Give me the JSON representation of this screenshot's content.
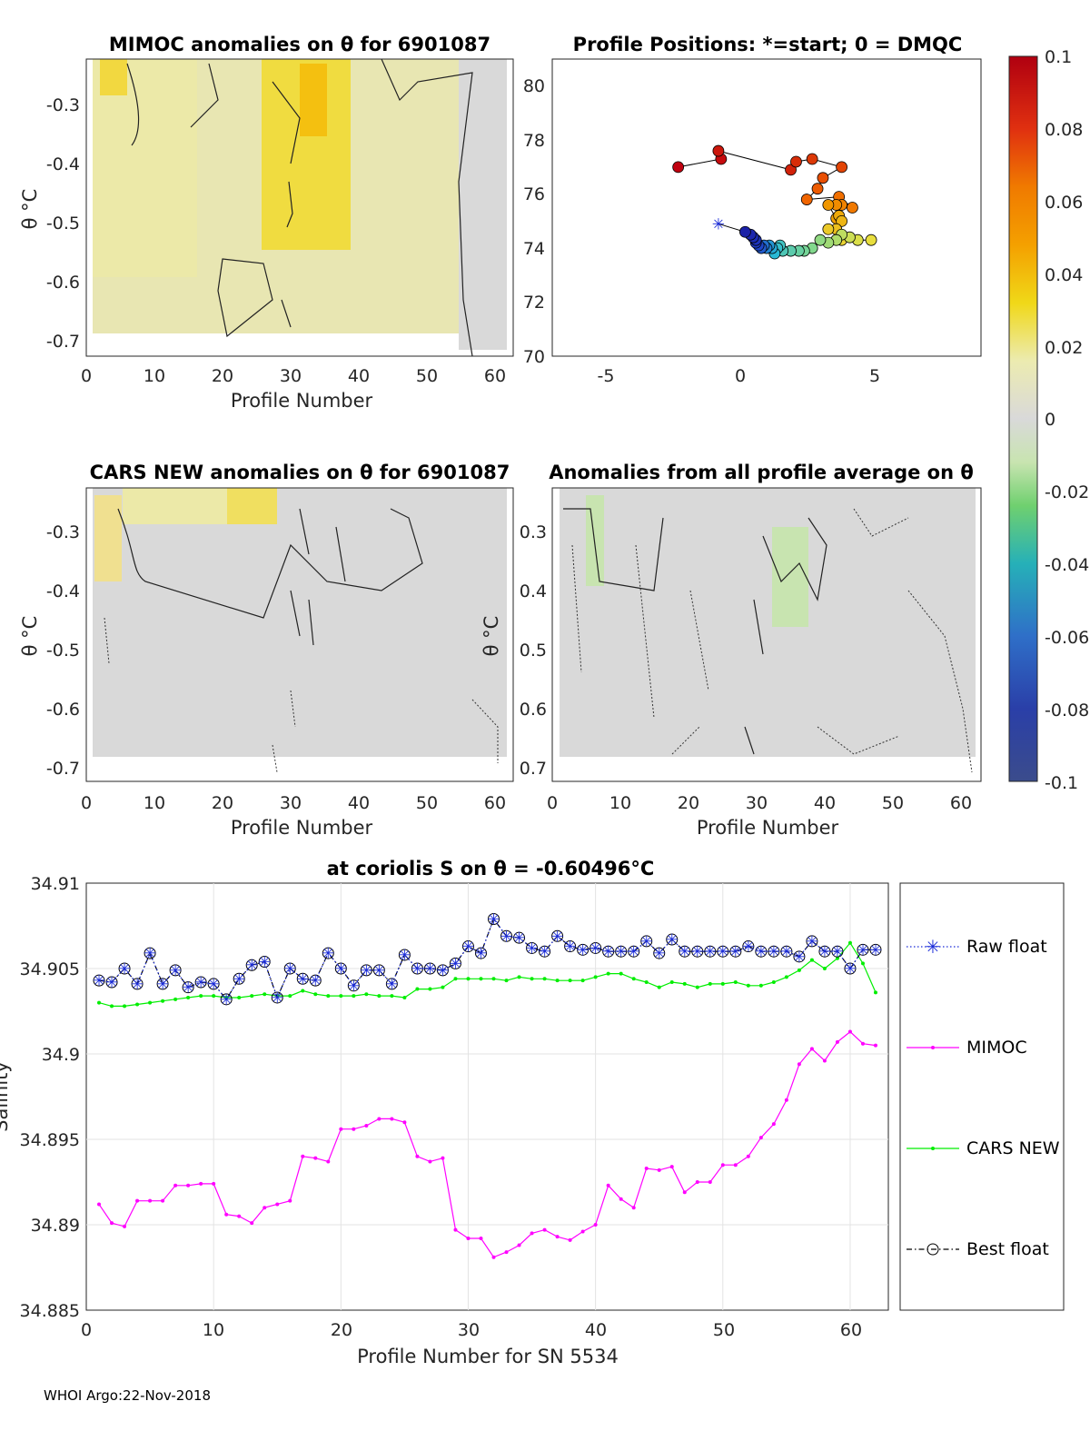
{
  "footer": "WHOI Argo:22-Nov-2018",
  "panels": {
    "mimoc": {
      "title": "MIMOC anomalies on θ  for 6901087",
      "xlabel": "Profile Number",
      "ylabel": "θ °C",
      "xticks": [
        "0",
        "10",
        "20",
        "30",
        "40",
        "50",
        "60"
      ],
      "yticks": [
        "-0.3",
        "-0.4",
        "-0.5",
        "-0.6",
        "-0.7"
      ]
    },
    "positions": {
      "title": "Profile Positions: *=start; 0 = DMQC",
      "xticks": [
        "-5",
        "0",
        "5"
      ],
      "yticks": [
        "80",
        "78",
        "76",
        "74",
        "72",
        "70"
      ]
    },
    "cars": {
      "title": "CARS NEW anomalies on θ for 6901087",
      "xlabel": "Profile Number",
      "ylabel": "θ °C",
      "xticks": [
        "0",
        "10",
        "20",
        "30",
        "40",
        "50",
        "60"
      ],
      "yticks": [
        "-0.3",
        "-0.4",
        "-0.5",
        "-0.6",
        "-0.7"
      ]
    },
    "allavg": {
      "title": "Anomalies from all profile average on θ",
      "xlabel": "Profile Number",
      "ylabel": "θ °C",
      "xticks": [
        "0",
        "10",
        "20",
        "30",
        "40",
        "50",
        "60"
      ],
      "yticks": [
        "0.3",
        "0.4",
        "0.5",
        "0.6",
        "0.7"
      ]
    }
  },
  "colorbar": {
    "ticks": [
      "0.1",
      "0.08",
      "0.06",
      "0.04",
      "0.02",
      "0",
      "-0.02",
      "-0.04",
      "-0.06",
      "-0.08",
      "-0.1"
    ],
    "colors": [
      "#3b4cc0",
      "#2a3fa8",
      "#1e3fa0",
      "#2f6fc8",
      "#26b0c8",
      "#3fc7a0",
      "#6fd06f",
      "#b8e08c",
      "#d9d9d9",
      "#e8e8a8",
      "#f2e27a",
      "#f0cc10",
      "#f4a000",
      "#f07a00",
      "#e84a10",
      "#d81010",
      "#b00010"
    ]
  },
  "chart_data": {
    "type": "line",
    "title": "at coriolis S on θ = -0.60496°C",
    "xlabel": "Profile Number for SN 5534",
    "ylabel": "Salinity",
    "xlim": [
      0,
      63
    ],
    "ylim": [
      34.885,
      34.91
    ],
    "xticks": [
      "0",
      "10",
      "20",
      "30",
      "40",
      "50",
      "60"
    ],
    "yticks": [
      "34.91",
      "34.905",
      "34.9",
      "34.895",
      "34.89",
      "34.885"
    ],
    "x": [
      1,
      2,
      3,
      4,
      5,
      6,
      7,
      8,
      9,
      10,
      11,
      12,
      13,
      14,
      15,
      16,
      17,
      18,
      19,
      20,
      21,
      22,
      23,
      24,
      25,
      26,
      27,
      28,
      29,
      30,
      31,
      32,
      33,
      34,
      35,
      36,
      37,
      38,
      39,
      40,
      41,
      42,
      43,
      44,
      45,
      46,
      47,
      48,
      49,
      50,
      51,
      52,
      53,
      54,
      55,
      56,
      57,
      58,
      59,
      60,
      61,
      62
    ],
    "series": [
      {
        "name": "Raw float",
        "color": "#1a2bd8",
        "style": "dotted",
        "values": [
          34.9043,
          34.9042,
          34.905,
          34.9041,
          34.9059,
          34.9041,
          34.9049,
          34.9039,
          34.9042,
          34.9041,
          34.9032,
          34.9044,
          34.9052,
          34.9054,
          34.9033,
          34.905,
          34.9044,
          34.9043,
          34.9059,
          34.905,
          34.904,
          34.9049,
          34.9049,
          34.9041,
          34.9058,
          34.905,
          34.905,
          34.9049,
          34.9053,
          34.9063,
          34.9059,
          34.9079,
          34.9069,
          34.9068,
          34.9062,
          34.906,
          34.9069,
          34.9063,
          34.9061,
          34.9062,
          34.906,
          34.906,
          34.906,
          34.9066,
          34.9059,
          34.9067,
          34.906,
          34.906,
          34.906,
          34.906,
          34.906,
          34.9063,
          34.906,
          34.906,
          34.906,
          34.9057,
          34.9066,
          34.906,
          34.906,
          34.905,
          34.9061,
          34.9061
        ]
      },
      {
        "name": "MIMOC",
        "color": "#ff00ff",
        "style": "solid",
        "values": [
          34.8912,
          34.8901,
          34.8899,
          34.8914,
          34.8914,
          34.8914,
          34.8923,
          34.8923,
          34.8924,
          34.8924,
          34.8906,
          34.8905,
          34.8901,
          34.891,
          34.8912,
          34.8914,
          34.894,
          34.8939,
          34.8937,
          34.8956,
          34.8956,
          34.8958,
          34.8962,
          34.8962,
          34.896,
          34.894,
          34.8937,
          34.8939,
          34.8897,
          34.8892,
          34.8892,
          34.8881,
          34.8884,
          34.8888,
          34.8895,
          34.8897,
          34.8893,
          34.8891,
          34.8896,
          34.89,
          34.8923,
          34.8915,
          34.891,
          34.8933,
          34.8932,
          34.8934,
          34.8919,
          34.8925,
          34.8925,
          34.8935,
          34.8935,
          34.894,
          34.8951,
          34.8959,
          34.8973,
          34.8994,
          34.9003,
          34.8996,
          34.9007,
          34.9013,
          34.9006,
          34.9005
        ]
      },
      {
        "name": "CARS NEW",
        "color": "#00ee00",
        "style": "solid",
        "values": [
          34.903,
          34.9028,
          34.9028,
          34.9029,
          34.903,
          34.9031,
          34.9032,
          34.9033,
          34.9034,
          34.9034,
          34.9033,
          34.9033,
          34.9034,
          34.9035,
          34.9034,
          34.9034,
          34.9037,
          34.9035,
          34.9034,
          34.9034,
          34.9034,
          34.9035,
          34.9034,
          34.9034,
          34.9033,
          34.9038,
          34.9038,
          34.9039,
          34.9044,
          34.9044,
          34.9044,
          34.9044,
          34.9043,
          34.9045,
          34.9044,
          34.9044,
          34.9043,
          34.9043,
          34.9043,
          34.9045,
          34.9047,
          34.9047,
          34.9044,
          34.9042,
          34.9039,
          34.9042,
          34.9041,
          34.9039,
          34.9041,
          34.9041,
          34.9042,
          34.904,
          34.904,
          34.9042,
          34.9045,
          34.9049,
          34.9055,
          34.905,
          34.9056,
          34.9065,
          34.9053,
          34.9036
        ]
      },
      {
        "name": "Best float",
        "color": "#000000",
        "style": "dashdot",
        "values": [
          34.9043,
          34.9042,
          34.905,
          34.9041,
          34.9059,
          34.9041,
          34.9049,
          34.9039,
          34.9042,
          34.9041,
          34.9032,
          34.9044,
          34.9052,
          34.9054,
          34.9033,
          34.905,
          34.9044,
          34.9043,
          34.9059,
          34.905,
          34.904,
          34.9049,
          34.9049,
          34.9041,
          34.9058,
          34.905,
          34.905,
          34.9049,
          34.9053,
          34.9063,
          34.9059,
          34.9079,
          34.9069,
          34.9068,
          34.9062,
          34.906,
          34.9069,
          34.9063,
          34.9061,
          34.9062,
          34.906,
          34.906,
          34.906,
          34.9066,
          34.9059,
          34.9067,
          34.906,
          34.906,
          34.906,
          34.906,
          34.906,
          34.9063,
          34.906,
          34.906,
          34.906,
          34.9057,
          34.9066,
          34.906,
          34.906,
          34.905,
          34.9061,
          34.9061
        ]
      }
    ],
    "positions": {
      "lon": [
        -0.8,
        0.2,
        0.4,
        0.5,
        0.6,
        0.6,
        0.7,
        0.8,
        0.9,
        1.0,
        1.1,
        1.2,
        1.3,
        1.4,
        1.5,
        1.6,
        1.9,
        2.2,
        2.4,
        2.7,
        3.0,
        3.3,
        3.6,
        3.8,
        4.1,
        4.4,
        4.9,
        3.8,
        3.3,
        3.6,
        3.8,
        3.7,
        3.6,
        3.3,
        3.6,
        3.8,
        4.2,
        3.7,
        2.5,
        2.9,
        3.1,
        3.8,
        2.7,
        2.1,
        1.9,
        -0.8,
        -0.7,
        -2.3
      ],
      "lat": [
        74.9,
        74.6,
        74.5,
        74.4,
        74.3,
        74.2,
        74.1,
        74.0,
        74.1,
        74.0,
        74.1,
        74.0,
        73.8,
        74.0,
        74.1,
        73.9,
        73.9,
        73.9,
        73.9,
        74.0,
        74.3,
        74.2,
        74.3,
        74.5,
        74.4,
        74.3,
        74.3,
        74.3,
        74.7,
        74.7,
        75.0,
        75.2,
        75.1,
        75.6,
        75.6,
        75.6,
        75.5,
        75.9,
        75.8,
        76.2,
        76.6,
        77.0,
        77.3,
        77.2,
        76.9,
        77.6,
        77.3,
        77.0
      ],
      "xlim": [
        -7.0,
        9.0
      ],
      "ylim": [
        70,
        81
      ]
    }
  }
}
